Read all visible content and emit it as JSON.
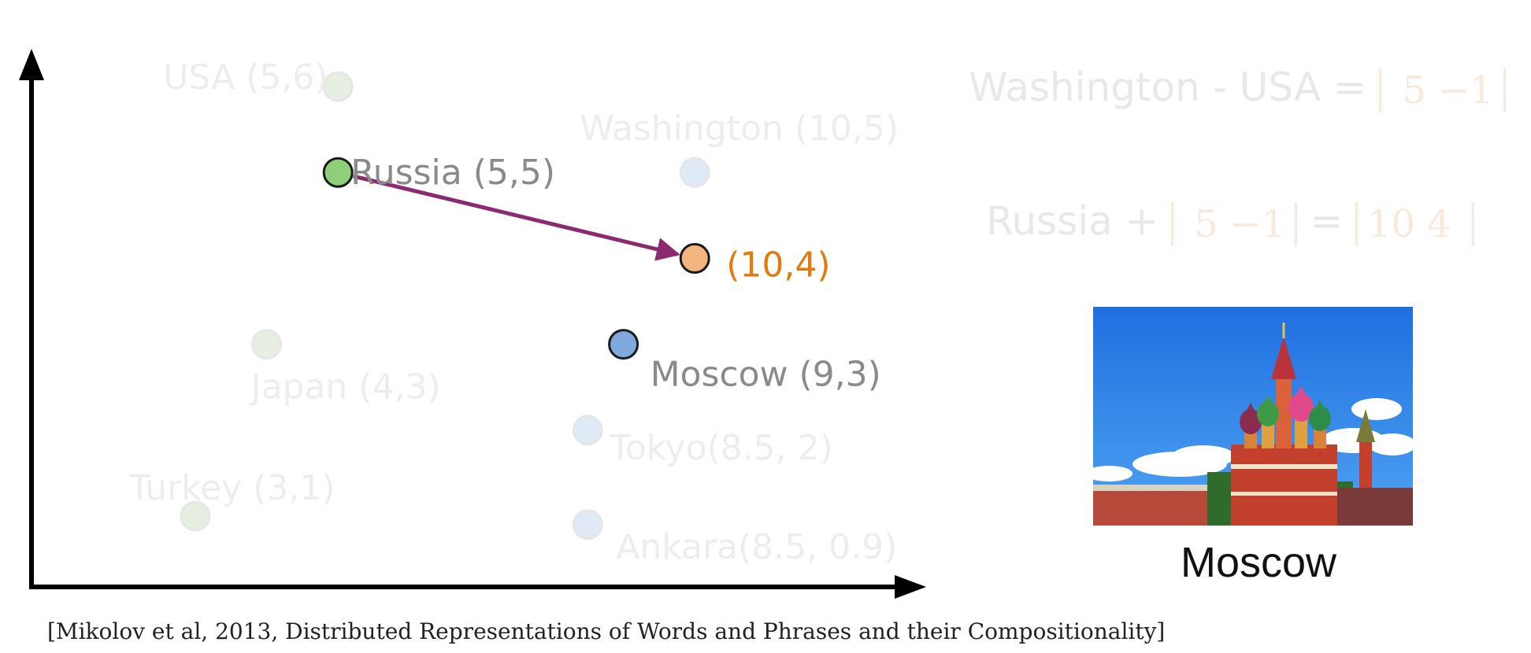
{
  "chart_data": {
    "type": "scatter",
    "points": [
      {
        "label": "USA (5,6)",
        "x": 5,
        "y": 6,
        "emphasis": "faded",
        "color": "#e6efe2"
      },
      {
        "label": "Russia (5,5)",
        "x": 5,
        "y": 5,
        "emphasis": "highlight",
        "color": "#8fcf7a"
      },
      {
        "label": "Washington  (10,5)",
        "x": 10,
        "y": 5,
        "emphasis": "faded",
        "color": "#dfeaf6"
      },
      {
        "label": "(10,4)",
        "x": 10,
        "y": 4,
        "emphasis": "highlight",
        "color": "#f4b47f"
      },
      {
        "label": "Japan (4,3)",
        "x": 4,
        "y": 3,
        "emphasis": "faded",
        "color": "#e6efe2"
      },
      {
        "label": "Moscow (9,3)",
        "x": 9,
        "y": 3,
        "emphasis": "highlight",
        "color": "#7fa9dc"
      },
      {
        "label": "Tokyo(8.5, 2)",
        "x": 8.5,
        "y": 2,
        "emphasis": "faded",
        "color": "#dfeaf6"
      },
      {
        "label": "Turkey (3,1)",
        "x": 3,
        "y": 1,
        "emphasis": "faded",
        "color": "#e6efe2"
      },
      {
        "label": "Ankara(8.5, 0.9)",
        "x": 8.5,
        "y": 0.9,
        "emphasis": "faded",
        "color": "#dfeaf6"
      }
    ],
    "arrow": {
      "from": [
        5,
        5
      ],
      "to": [
        10,
        4
      ],
      "color": "#8b2a6e"
    },
    "axes": {
      "arrows": true,
      "ticks": false
    }
  },
  "equations": {
    "eq1": {
      "lhs": "Washington - USA =",
      "vector": [
        "5",
        "−1"
      ]
    },
    "eq2": {
      "lhs": "Russia +",
      "vector": [
        "5",
        "−1"
      ],
      "equals": "=",
      "result": [
        "10",
        "4"
      ]
    }
  },
  "photo": {
    "caption": "Moscow"
  },
  "citation": "[Mikolov et al, 2013, Distributed Representations of Words and Phrases and their Compositionality]"
}
